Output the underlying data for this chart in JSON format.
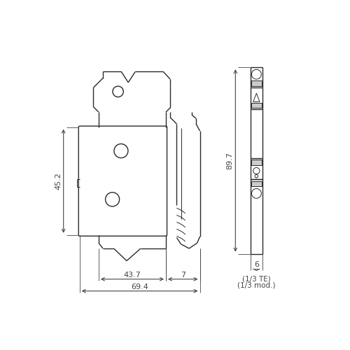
{
  "bg_color": "#ffffff",
  "line_color": "#2a2a2a",
  "dim_color": "#444444",
  "lw": 1.0,
  "tlw": 0.7,
  "fig_size": [
    5.0,
    5.0
  ],
  "dpi": 100,
  "dim_45_2": "45.2",
  "dim_43_7": "43.7",
  "dim_7": "7",
  "dim_69_4": "69.4",
  "dim_89_7": "89.7",
  "dim_6": "6",
  "dim_te": "(1/3 TE)",
  "dim_mod": "(1/3 mod.)"
}
